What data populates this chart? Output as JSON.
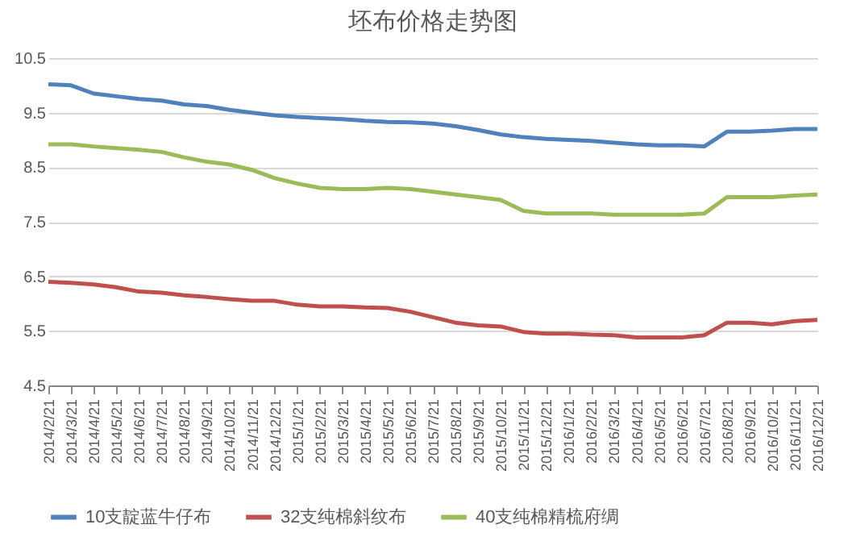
{
  "chart_data": {
    "type": "line",
    "title": "坯布价格走势图",
    "categories": [
      "2014/2/21",
      "2014/3/21",
      "2014/4/21",
      "2014/5/21",
      "2014/6/21",
      "2014/7/21",
      "2014/8/21",
      "2014/9/21",
      "2014/10/21",
      "2014/11/21",
      "2014/12/21",
      "2015/1/21",
      "2015/2/21",
      "2015/3/21",
      "2015/4/21",
      "2015/5/21",
      "2015/6/21",
      "2015/7/21",
      "2015/8/21",
      "2015/9/21",
      "2015/10/21",
      "2015/11/21",
      "2015/12/21",
      "2016/1/21",
      "2016/2/21",
      "2016/3/21",
      "2016/4/21",
      "2016/5/21",
      "2016/6/21",
      "2016/7/21",
      "2016/8/21",
      "2016/9/21",
      "2016/10/21",
      "2016/11/21",
      "2016/12/21"
    ],
    "series": [
      {
        "name": "10支靛蓝牛仔布",
        "color": "#4f81bd",
        "values": [
          10.02,
          10.0,
          9.85,
          9.8,
          9.75,
          9.72,
          9.65,
          9.62,
          9.55,
          9.5,
          9.45,
          9.42,
          9.4,
          9.38,
          9.35,
          9.33,
          9.32,
          9.3,
          9.25,
          9.18,
          9.1,
          9.05,
          9.02,
          9.0,
          8.98,
          8.95,
          8.92,
          8.9,
          8.9,
          8.88,
          9.15,
          9.15,
          9.17,
          9.2,
          9.2
        ]
      },
      {
        "name": "32支纯棉斜纹布",
        "color": "#c0504d",
        "values": [
          6.4,
          6.38,
          6.35,
          6.3,
          6.22,
          6.2,
          6.15,
          6.12,
          6.08,
          6.05,
          6.05,
          5.98,
          5.95,
          5.95,
          5.93,
          5.92,
          5.85,
          5.75,
          5.65,
          5.6,
          5.58,
          5.48,
          5.45,
          5.45,
          5.43,
          5.42,
          5.38,
          5.38,
          5.38,
          5.42,
          5.65,
          5.65,
          5.62,
          5.68,
          5.7
        ]
      },
      {
        "name": "40支纯棉精梳府绸",
        "color": "#9bbb59",
        "values": [
          8.92,
          8.92,
          8.88,
          8.85,
          8.82,
          8.78,
          8.68,
          8.6,
          8.55,
          8.45,
          8.3,
          8.2,
          8.12,
          8.1,
          8.1,
          8.12,
          8.1,
          8.05,
          8.0,
          7.95,
          7.9,
          7.7,
          7.65,
          7.65,
          7.65,
          7.63,
          7.63,
          7.63,
          7.63,
          7.65,
          7.95,
          7.95,
          7.95,
          7.98,
          8.0
        ]
      }
    ],
    "ylim": [
      4.5,
      10.5
    ],
    "yticks": [
      4.5,
      5.5,
      6.5,
      7.5,
      8.5,
      9.5,
      10.5
    ],
    "grid": "y",
    "legend": "bottom",
    "marker": "none",
    "line_style": "solid"
  }
}
